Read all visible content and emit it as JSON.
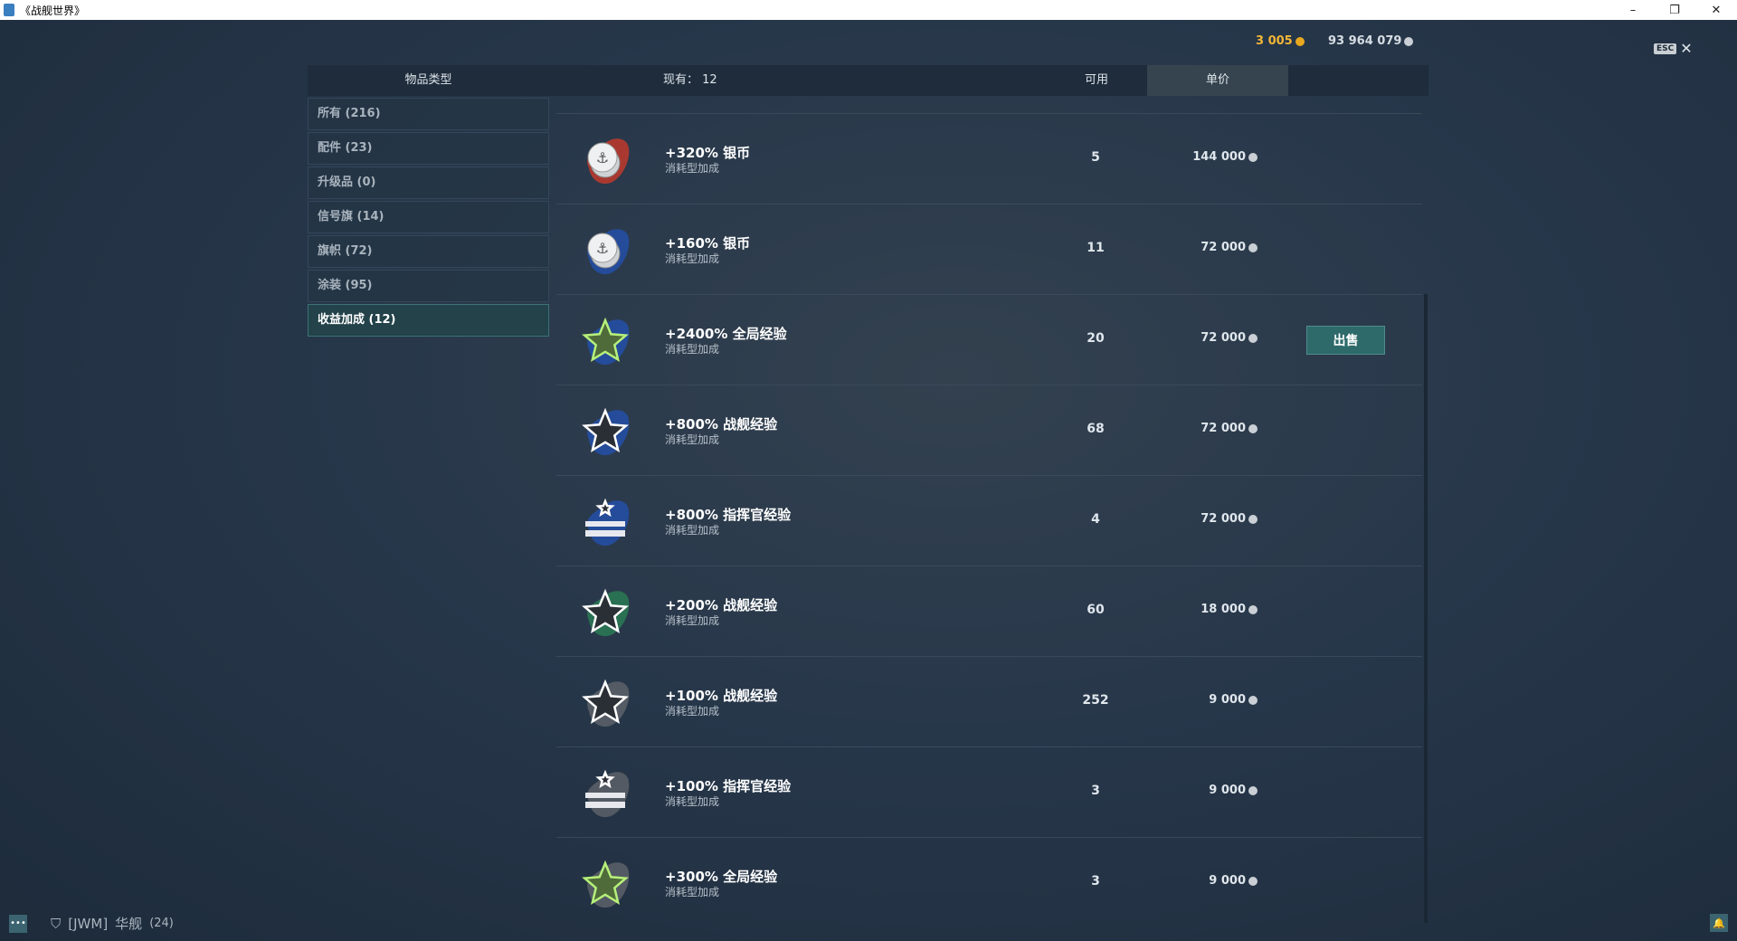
{
  "window": {
    "title": "《战舰世界》",
    "minimize": "–",
    "restore": "❐",
    "close": "✕"
  },
  "currency": {
    "gold": "3 005",
    "silver": "93 964 079"
  },
  "esc": {
    "key": "ESC",
    "close": "✕"
  },
  "header": {
    "item_type": "物品类型",
    "owned": "现有： 12",
    "available": "可用",
    "unit_price": "单价"
  },
  "sidebar": {
    "items": [
      {
        "label": "所有 (216)"
      },
      {
        "label": "配件 (23)"
      },
      {
        "label": "升级品 (0)"
      },
      {
        "label": "信号旗 (14)"
      },
      {
        "label": "旗帜 (72)"
      },
      {
        "label": "涂装 (95)"
      },
      {
        "label": "收益加成 (12)",
        "active": true
      }
    ]
  },
  "items": [
    {
      "name": "+320% 银币",
      "sub": "消耗型加成",
      "count": "5",
      "price": "144 000",
      "icon": "coin",
      "splash": "#c0392b"
    },
    {
      "name": "+160% 银币",
      "sub": "消耗型加成",
      "count": "11",
      "price": "72 000",
      "icon": "coin",
      "splash": "#2450a8"
    },
    {
      "name": "+2400% 全局经验",
      "sub": "消耗型加成",
      "count": "20",
      "price": "72 000",
      "icon": "star-green",
      "splash": "#2450a8",
      "sell": "出售"
    },
    {
      "name": "+800% 战舰经验",
      "sub": "消耗型加成",
      "count": "68",
      "price": "72 000",
      "icon": "star",
      "splash": "#2450a8"
    },
    {
      "name": "+800% 指挥官经验",
      "sub": "消耗型加成",
      "count": "4",
      "price": "72 000",
      "icon": "commander",
      "splash": "#2450a8"
    },
    {
      "name": "+200% 战舰经验",
      "sub": "消耗型加成",
      "count": "60",
      "price": "18 000",
      "icon": "star",
      "splash": "#2a7a55"
    },
    {
      "name": "+100% 战舰经验",
      "sub": "消耗型加成",
      "count": "252",
      "price": "9 000",
      "icon": "star",
      "splash": "#5d6268"
    },
    {
      "name": "+100% 指挥官经验",
      "sub": "消耗型加成",
      "count": "3",
      "price": "9 000",
      "icon": "commander",
      "splash": "#5d6268"
    },
    {
      "name": "+300% 全局经验",
      "sub": "消耗型加成",
      "count": "3",
      "price": "9 000",
      "icon": "star-green",
      "splash": "#5d6268"
    }
  ],
  "footer": {
    "clan": "[JWM]",
    "player": "华舰",
    "level": "(24)"
  }
}
